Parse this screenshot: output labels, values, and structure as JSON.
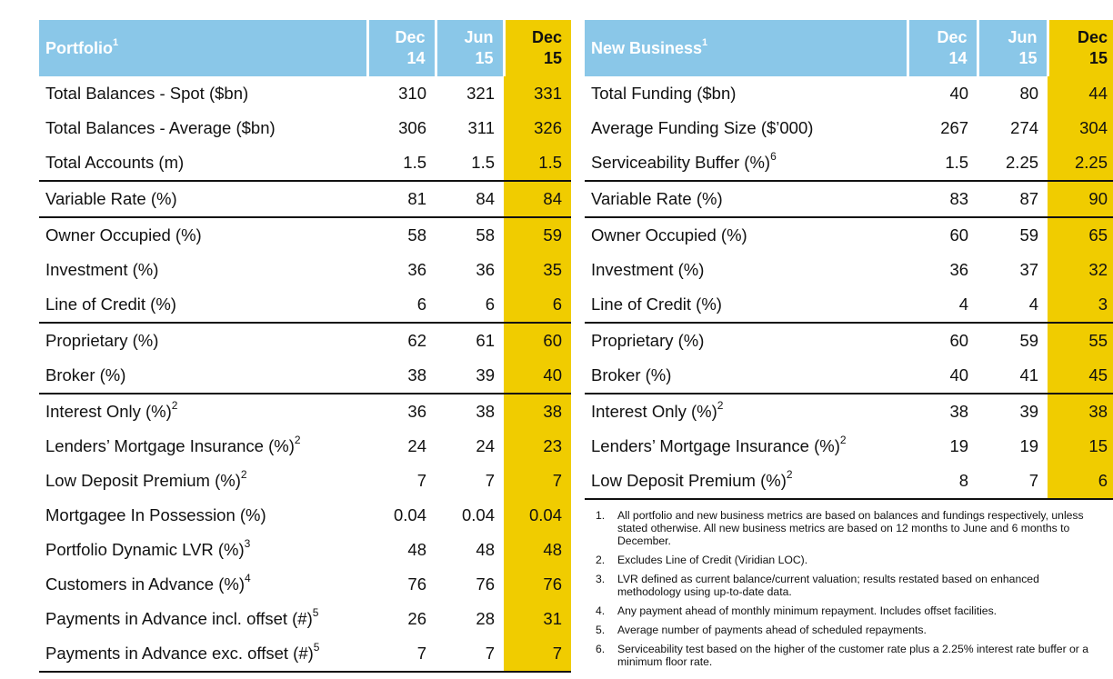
{
  "portfolio": {
    "title": "Portfolio",
    "title_sup": "1",
    "columns": [
      {
        "line1": "Dec",
        "line2": "14"
      },
      {
        "line1": "Jun",
        "line2": "15"
      },
      {
        "line1": "Dec",
        "line2": "15"
      }
    ],
    "rows": [
      {
        "label": "Total Balances - Spot ($bn)",
        "sup": "",
        "v1": "310",
        "v2": "321",
        "v3": "331"
      },
      {
        "label": "Total Balances - Average ($bn)",
        "sup": "",
        "v1": "306",
        "v2": "311",
        "v3": "326"
      },
      {
        "label": "Total Accounts (m)",
        "sup": "",
        "v1": "1.5",
        "v2": "1.5",
        "v3": "1.5"
      },
      {
        "label": "Variable Rate (%)",
        "sup": "",
        "v1": "81",
        "v2": "84",
        "v3": "84"
      },
      {
        "label": "Owner Occupied (%)",
        "sup": "",
        "v1": "58",
        "v2": "58",
        "v3": "59"
      },
      {
        "label": "Investment (%)",
        "sup": "",
        "v1": "36",
        "v2": "36",
        "v3": "35"
      },
      {
        "label": "Line of Credit (%)",
        "sup": "",
        "v1": "6",
        "v2": "6",
        "v3": "6"
      },
      {
        "label": "Proprietary (%)",
        "sup": "",
        "v1": "62",
        "v2": "61",
        "v3": "60"
      },
      {
        "label": "Broker (%)",
        "sup": "",
        "v1": "38",
        "v2": "39",
        "v3": "40"
      },
      {
        "label": "Interest Only (%)",
        "sup": "2",
        "v1": "36",
        "v2": "38",
        "v3": "38"
      },
      {
        "label": "Lenders’ Mortgage Insurance (%)",
        "sup": "2",
        "v1": "24",
        "v2": "24",
        "v3": "23"
      },
      {
        "label": "Low Deposit Premium (%)",
        "sup": "2",
        "v1": "7",
        "v2": "7",
        "v3": "7"
      },
      {
        "label": "Mortgagee In Possession (%)",
        "sup": "",
        "v1": "0.04",
        "v2": "0.04",
        "v3": "0.04"
      },
      {
        "label": "Portfolio Dynamic LVR (%)",
        "sup": "3",
        "v1": "48",
        "v2": "48",
        "v3": "48"
      },
      {
        "label": "Customers in Advance (%)",
        "sup": "4",
        "v1": "76",
        "v2": "76",
        "v3": "76"
      },
      {
        "label": "Payments in Advance incl. offset (#)",
        "sup": "5",
        "v1": "26",
        "v2": "28",
        "v3": "31"
      },
      {
        "label": "Payments in Advance exc. offset (#)",
        "sup": "5",
        "v1": "7",
        "v2": "7",
        "v3": "7"
      }
    ]
  },
  "new_business": {
    "title": "New Business",
    "title_sup": "1",
    "columns": [
      {
        "line1": "Dec",
        "line2": "14"
      },
      {
        "line1": "Jun",
        "line2": "15"
      },
      {
        "line1": "Dec",
        "line2": "15"
      }
    ],
    "rows": [
      {
        "label": "Total Funding ($bn)",
        "sup": "",
        "v1": "40",
        "v2": "80",
        "v3": "44"
      },
      {
        "label": "Average Funding Size ($’000)",
        "sup": "",
        "v1": "267",
        "v2": "274",
        "v3": "304"
      },
      {
        "label": "Serviceability Buffer (%)",
        "sup": "6",
        "v1": "1.5",
        "v2": "2.25",
        "v3": "2.25"
      },
      {
        "label": "Variable Rate (%)",
        "sup": "",
        "v1": "83",
        "v2": "87",
        "v3": "90"
      },
      {
        "label": "Owner Occupied (%)",
        "sup": "",
        "v1": "60",
        "v2": "59",
        "v3": "65"
      },
      {
        "label": "Investment (%)",
        "sup": "",
        "v1": "36",
        "v2": "37",
        "v3": "32"
      },
      {
        "label": "Line of Credit (%)",
        "sup": "",
        "v1": "4",
        "v2": "4",
        "v3": "3"
      },
      {
        "label": "Proprietary (%)",
        "sup": "",
        "v1": "60",
        "v2": "59",
        "v3": "55"
      },
      {
        "label": "Broker (%)",
        "sup": "",
        "v1": "40",
        "v2": "41",
        "v3": "45"
      },
      {
        "label": "Interest Only (%)",
        "sup": "2",
        "v1": "38",
        "v2": "39",
        "v3": "38"
      },
      {
        "label": "Lenders’ Mortgage Insurance (%)",
        "sup": "2",
        "v1": "19",
        "v2": "19",
        "v3": "15"
      },
      {
        "label": "Low Deposit Premium (%)",
        "sup": "2",
        "v1": "8",
        "v2": "7",
        "v3": "6"
      }
    ]
  },
  "footnotes": [
    {
      "num": "1.",
      "text": "All portfolio and new business metrics are based on balances and fundings respectively, unless stated otherwise. All new business metrics are based on 12 months to June and 6 months to December."
    },
    {
      "num": "2.",
      "text": "Excludes Line of Credit (Viridian LOC)."
    },
    {
      "num": "3.",
      "text": "LVR defined as current balance/current valuation; results restated based on enhanced methodology using up-to-date data."
    },
    {
      "num": "4.",
      "text": "Any payment ahead of monthly minimum repayment. Includes offset facilities."
    },
    {
      "num": "5.",
      "text": "Average number of payments ahead of scheduled repayments."
    },
    {
      "num": "6.",
      "text": "Serviceability test based on the higher of the customer rate plus a 2.25% interest rate buffer or a minimum floor rate."
    }
  ],
  "colors": {
    "header_blue": "#8ac7e8",
    "highlight_yellow": "#f0cc00"
  }
}
